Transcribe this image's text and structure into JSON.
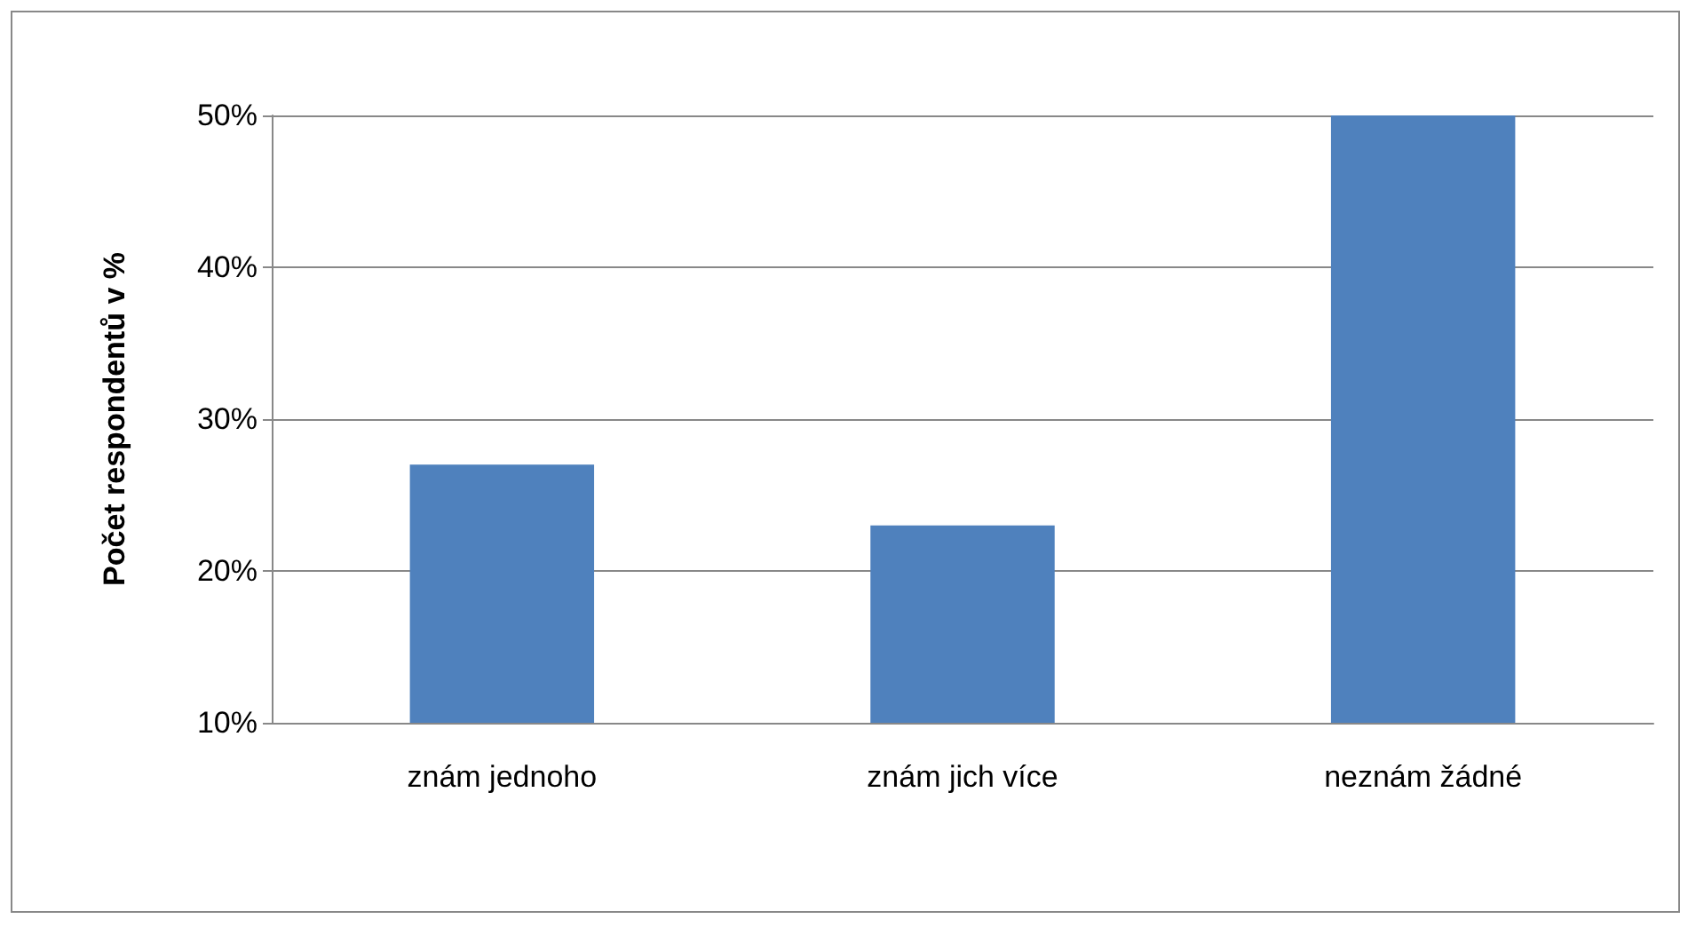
{
  "chart_data": {
    "type": "bar",
    "ylabel": "Počet respondentů v %",
    "categories": [
      "znám jednoho",
      "znám jich více",
      "neznám žádné"
    ],
    "values": [
      27,
      23,
      50
    ],
    "color": "#4f81bd",
    "ylim": [
      10,
      50
    ],
    "yticks": [
      {
        "value": 10,
        "label": "10%"
      },
      {
        "value": 20,
        "label": "20%"
      },
      {
        "value": 30,
        "label": "30%"
      },
      {
        "value": 40,
        "label": "40%"
      },
      {
        "value": 50,
        "label": "50%"
      }
    ],
    "grid": "y"
  }
}
